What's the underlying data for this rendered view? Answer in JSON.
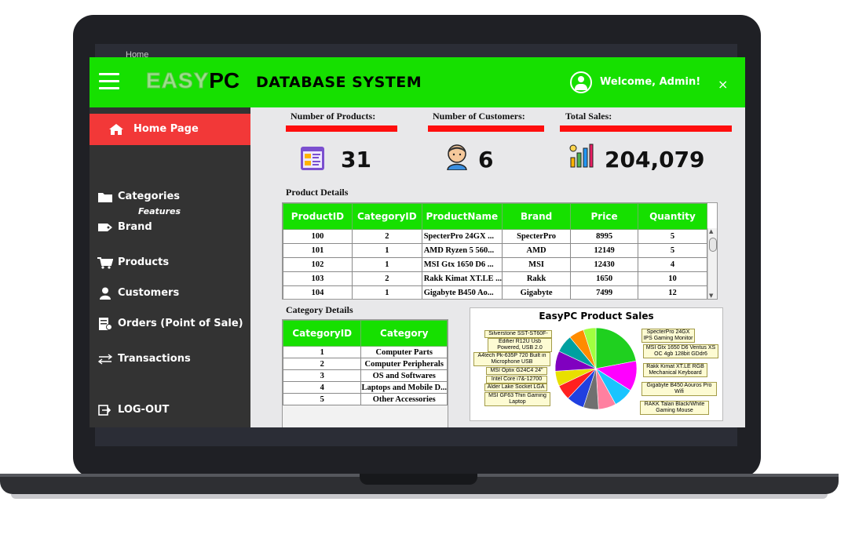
{
  "ghost_tab": "Home",
  "header": {
    "logo_easy": "EASY",
    "logo_pc": "PC",
    "title": "DATABASE SYSTEM",
    "welcome": "Welcome, Admin!",
    "close": "×"
  },
  "sidebar": {
    "home": "Home Page",
    "features": "Features",
    "items": [
      {
        "label": "Categories",
        "icon": "folder-icon"
      },
      {
        "label": "Brand",
        "icon": "tag-icon"
      },
      {
        "label": "Products",
        "icon": "cart-icon"
      },
      {
        "label": "Customers",
        "icon": "user-icon"
      },
      {
        "label": "Orders (Point of Sale)",
        "icon": "receipt-icon"
      },
      {
        "label": "Transactions",
        "icon": "transfer-icon"
      },
      {
        "label": "LOG-OUT",
        "icon": "logout-icon"
      }
    ]
  },
  "stats": {
    "products_label": "Number of Products:",
    "products_value": "31",
    "customers_label": "Number of Customers:",
    "customers_value": "6",
    "sales_label": "Total Sales:",
    "sales_value": "204,079"
  },
  "product_details": {
    "title": "Product Details",
    "columns": [
      "ProductID",
      "CategoryID",
      "ProductName",
      "Brand",
      "Price",
      "Quantity"
    ],
    "rows": [
      [
        "100",
        "2",
        "SpecterPro 24GX ...",
        "SpecterPro",
        "8995",
        "5"
      ],
      [
        "101",
        "1",
        "AMD Ryzen 5 560...",
        "AMD",
        "12149",
        "5"
      ],
      [
        "102",
        "1",
        "MSI Gtx 1650 D6 ...",
        "MSI",
        "12430",
        "4"
      ],
      [
        "103",
        "2",
        "Rakk Kimat XT.LE ...",
        "Rakk",
        "1650",
        "10"
      ],
      [
        "104",
        "1",
        "Gigabyte B450 Ao...",
        "Gigabyte",
        "7499",
        "12"
      ]
    ]
  },
  "category_details": {
    "title": "Category Details",
    "columns": [
      "CategoryID",
      "Category"
    ],
    "rows": [
      [
        "1",
        "Computer Parts"
      ],
      [
        "2",
        "Computer Peripherals"
      ],
      [
        "3",
        "OS and Softwares"
      ],
      [
        "4",
        "Laptops and Mobile D..."
      ],
      [
        "5",
        "Other Accessories"
      ]
    ]
  },
  "chart": {
    "title": "EasyPC Product Sales",
    "left_labels": [
      "Silverstone SST-ST60F-ES",
      "Edifier R12U Usb Powered, USB 2.0",
      "A4tech Pk-635P 720 Built in Microphone USB",
      "MSI Optix G24C4 24\"",
      "Intel Core i7&-12700",
      "Alder Lake Socket LGA",
      "MSI GF63 Thin Gaming Laptop"
    ],
    "right_labels": [
      "SpecterPro 24GX IPS Gaming Monitor",
      "MSI Gtx 1650 D6 Ventus XS OC 4gb 128bit GDdr6",
      "Rakk Kimat XT.LE RGB Mechanical Keyboard",
      "Gigabyte B450 Aouros Pro Wifi",
      "RAKK Talan Black/White Gaming Mouse"
    ],
    "slice_colors": [
      "#1fd01f",
      "#ff00ff",
      "#19c4ff",
      "#ff80a0",
      "#707070",
      "#2040e0",
      "#ff2020",
      "#e8e000",
      "#8000c0",
      "#00a0a0",
      "#ff8c00",
      "#a0ff40"
    ]
  },
  "chart_data": {
    "type": "pie",
    "title": "EasyPC Product Sales",
    "categories": [
      "SpecterPro 24GX IPS Gaming Monitor",
      "MSI Gtx 1650 D6 Ventus XS OC 4gb 128bit GDdr6",
      "Rakk Kimat XT.LE RGB Mechanical Keyboard",
      "Gigabyte B450 Aouros Pro Wifi",
      "RAKK Talan Black/White Gaming Mouse",
      "MSI GF63 Thin Gaming Laptop",
      "Alder Lake Socket LGA",
      "Intel Core i7&-12700",
      "MSI Optix G24C4 24\"",
      "A4tech Pk-635P 720 Built in Microphone USB",
      "Edifier R12U Usb Powered, USB 2.0",
      "Silverstone SST-ST60F-ES"
    ],
    "values": [
      22,
      12,
      8,
      7,
      6,
      7,
      6,
      6,
      8,
      7,
      6,
      5
    ]
  }
}
